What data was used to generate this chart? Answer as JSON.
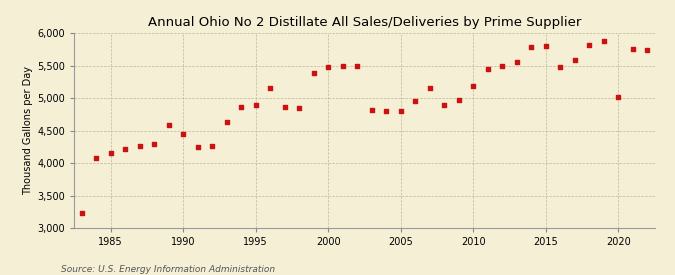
{
  "title": "Annual Ohio No 2 Distillate All Sales/Deliveries by Prime Supplier",
  "ylabel": "Thousand Gallons per Day",
  "source": "Source: U.S. Energy Information Administration",
  "background_color": "#f5efd6",
  "marker_color": "#cc1111",
  "ylim": [
    3000,
    6000
  ],
  "yticks": [
    3000,
    3500,
    4000,
    4500,
    5000,
    5500,
    6000
  ],
  "xlim": [
    1982.5,
    2022.5
  ],
  "xticks": [
    1985,
    1990,
    1995,
    2000,
    2005,
    2010,
    2015,
    2020
  ],
  "years": [
    1983,
    1984,
    1985,
    1986,
    1987,
    1988,
    1989,
    1990,
    1991,
    1992,
    1993,
    1994,
    1995,
    1996,
    1997,
    1998,
    1999,
    2000,
    2001,
    2002,
    2003,
    2004,
    2005,
    2006,
    2007,
    2008,
    2009,
    2010,
    2011,
    2012,
    2013,
    2014,
    2015,
    2016,
    2017,
    2018,
    2019,
    2020,
    2021,
    2022
  ],
  "values": [
    3230,
    4080,
    4150,
    4220,
    4270,
    4300,
    4590,
    4450,
    4250,
    4270,
    4640,
    4860,
    4890,
    5160,
    4870,
    4850,
    5380,
    5470,
    5500,
    5490,
    4810,
    4800,
    4800,
    4950,
    5150,
    4900,
    4970,
    5190,
    5450,
    5490,
    5560,
    5790,
    5800,
    5470,
    5590,
    5820,
    5870,
    5010,
    5760,
    5740
  ],
  "title_fontsize": 9.5,
  "ylabel_fontsize": 7,
  "tick_labelsize": 7,
  "source_fontsize": 6.5
}
